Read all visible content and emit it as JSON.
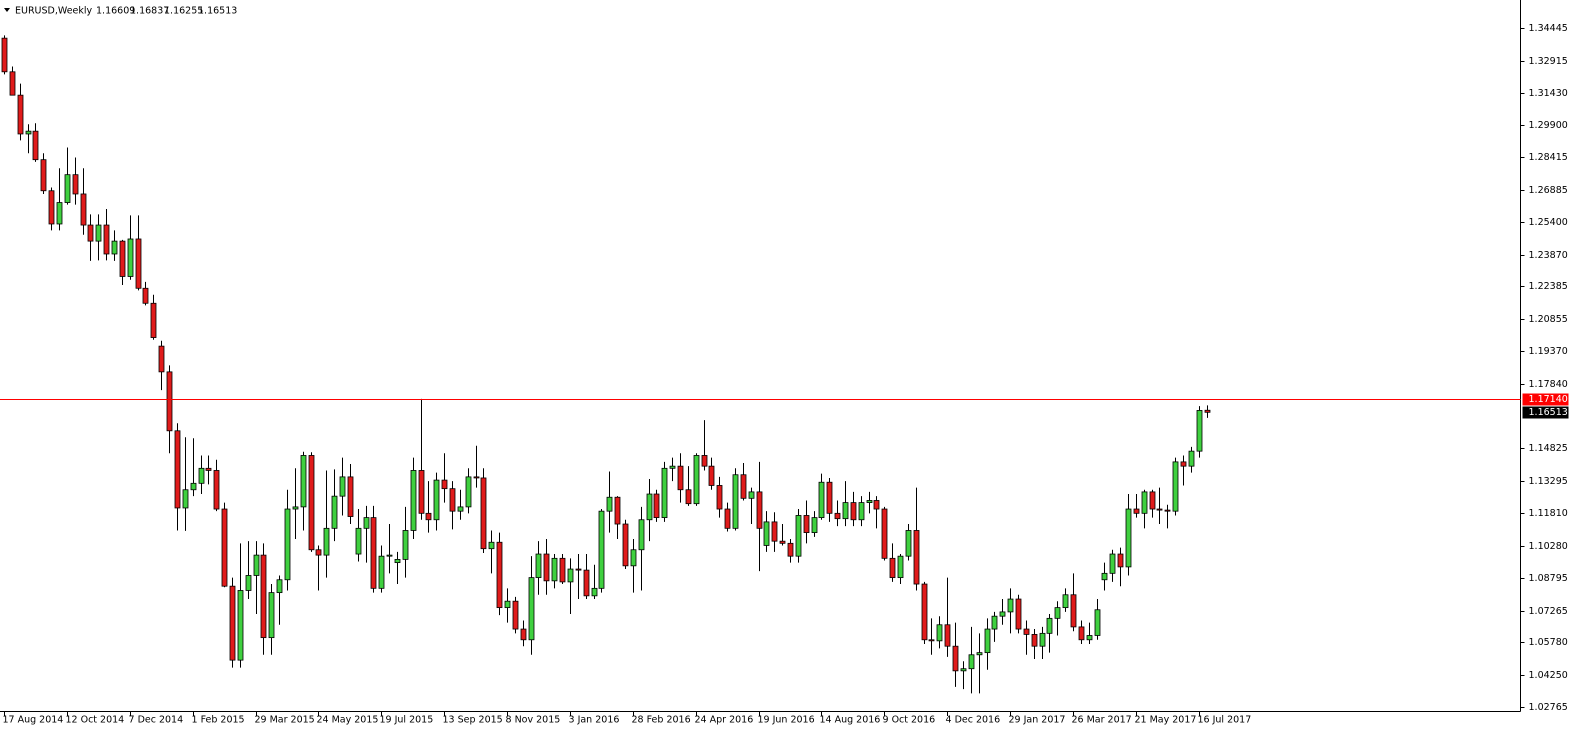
{
  "chart_data": {
    "type": "candlestick",
    "title": "EURUSD,Weekly",
    "categories": [
      "17 Aug 2014",
      null,
      null,
      null,
      null,
      null,
      null,
      null,
      "12 Oct 2014",
      null,
      null,
      null,
      null,
      null,
      null,
      null,
      "7 Dec 2014",
      null,
      null,
      null,
      null,
      null,
      null,
      null,
      "1 Feb 2015",
      null,
      null,
      null,
      null,
      null,
      null,
      null,
      "29 Mar 2015",
      null,
      null,
      null,
      null,
      null,
      null,
      null,
      "24 May 2015",
      null,
      null,
      null,
      null,
      null,
      null,
      null,
      "19 Jul 2015",
      null,
      null,
      null,
      null,
      null,
      null,
      null,
      "13 Sep 2015",
      null,
      null,
      null,
      null,
      null,
      null,
      null,
      "8 Nov 2015",
      null,
      null,
      null,
      null,
      null,
      null,
      null,
      "3 Jan 2016",
      null,
      null,
      null,
      null,
      null,
      null,
      null,
      "28 Feb 2016",
      null,
      null,
      null,
      null,
      null,
      null,
      null,
      "24 Apr 2016",
      null,
      null,
      null,
      null,
      null,
      null,
      null,
      "19 Jun 2016",
      null,
      null,
      null,
      null,
      null,
      null,
      null,
      "14 Aug 2016",
      null,
      null,
      null,
      null,
      null,
      null,
      null,
      "9 Oct 2016",
      null,
      null,
      null,
      null,
      null,
      null,
      null,
      "4 Dec 2016",
      null,
      null,
      null,
      null,
      null,
      null,
      null,
      "29 Jan 2017",
      null,
      null,
      null,
      null,
      null,
      null,
      null,
      "26 Mar 2017",
      null,
      null,
      null,
      null,
      null,
      null,
      null,
      "21 May 2017",
      null,
      null,
      null,
      null,
      null,
      null,
      null,
      "16 Jul 2017",
      null
    ],
    "open": [
      1.3397,
      1.324,
      1.3131,
      1.295,
      1.2963,
      1.283,
      1.2685,
      1.253,
      1.263,
      1.276,
      1.267,
      1.2525,
      1.245,
      1.2525,
      1.239,
      1.245,
      1.2285,
      1.246,
      1.223,
      1.216,
      1.196,
      1.184,
      1.1565,
      1.1205,
      1.129,
      1.132,
      1.139,
      1.138,
      1.12,
      1.084,
      1.0495,
      1.082,
      1.089,
      1.0985,
      1.06,
      1.081,
      1.087,
      1.12,
      1.121,
      1.145,
      1.101,
      1.0985,
      1.111,
      1.126,
      1.135,
      1.099,
      1.111,
      1.116,
      1.083,
      1.098,
      1.095,
      1.0965,
      1.11,
      1.138,
      1.118,
      1.115,
      1.1335,
      1.1295,
      1.119,
      1.121,
      1.135,
      1.1345,
      1.1015,
      1.1045,
      1.074,
      1.077,
      1.064,
      1.059,
      1.088,
      1.099,
      1.0865,
      1.097,
      1.086,
      1.092,
      1.0915,
      1.0795,
      1.083,
      1.119,
      1.1255,
      1.113,
      1.0935,
      1.101,
      1.115,
      1.127,
      1.116,
      1.139,
      1.14,
      1.129,
      1.1225,
      1.145,
      1.14,
      1.131,
      1.12,
      1.111,
      1.136,
      1.125,
      1.128,
      1.103,
      1.114,
      1.105,
      1.104,
      1.098,
      1.117,
      1.109,
      1.116,
      1.1325,
      1.118,
      1.1155,
      1.123,
      1.115,
      1.123,
      1.124,
      1.12,
      1.097,
      1.088,
      1.098,
      1.11,
      1.085,
      1.059,
      1.0585,
      1.066,
      1.056,
      1.0445,
      1.0455,
      1.052,
      1.053,
      1.064,
      1.07,
      1.072,
      1.078,
      1.064,
      1.0615,
      1.056,
      1.062,
      1.069,
      1.074,
      1.08,
      1.065,
      1.059,
      1.061,
      1.087,
      1.09,
      1.099,
      1.093,
      1.12,
      1.118,
      1.128,
      1.12,
      1.1195,
      1.119,
      1.142,
      1.14,
      1.147,
      1.16609
    ],
    "high": [
      1.341,
      1.3265,
      1.3185,
      1.2995,
      1.3,
      1.286,
      1.27,
      1.279,
      1.2887,
      1.284,
      1.279,
      1.2575,
      1.2575,
      1.26,
      1.25,
      1.2456,
      1.257,
      1.257,
      1.226,
      1.22,
      1.1985,
      1.187,
      1.16,
      1.1535,
      1.153,
      1.145,
      1.145,
      1.143,
      1.123,
      1.088,
      1.104,
      1.105,
      1.105,
      1.104,
      1.085,
      1.089,
      1.129,
      1.139,
      1.1467,
      1.1465,
      1.103,
      1.138,
      1.1385,
      1.144,
      1.141,
      1.12,
      1.1215,
      1.1215,
      1.103,
      1.113,
      1.1,
      1.121,
      1.144,
      1.1714,
      1.133,
      1.137,
      1.146,
      1.133,
      1.129,
      1.139,
      1.1495,
      1.139,
      1.11,
      1.109,
      1.083,
      1.079,
      1.068,
      1.098,
      1.105,
      1.106,
      1.099,
      1.099,
      1.097,
      1.099,
      1.099,
      1.094,
      1.12,
      1.1375,
      1.126,
      1.115,
      1.106,
      1.121,
      1.134,
      1.129,
      1.142,
      1.144,
      1.146,
      1.14,
      1.146,
      1.1615,
      1.144,
      1.135,
      1.123,
      1.139,
      1.1415,
      1.13,
      1.142,
      1.119,
      1.1185,
      1.113,
      1.106,
      1.12,
      1.124,
      1.119,
      1.1365,
      1.1345,
      1.124,
      1.133,
      1.128,
      1.126,
      1.128,
      1.126,
      1.121,
      1.104,
      1.099,
      1.113,
      1.13,
      1.086,
      1.069,
      1.07,
      1.088,
      1.067,
      1.049,
      1.065,
      1.062,
      1.069,
      1.072,
      1.078,
      1.083,
      1.08,
      1.068,
      1.064,
      1.065,
      1.071,
      1.077,
      1.083,
      1.09,
      1.068,
      1.067,
      1.078,
      1.095,
      1.101,
      1.102,
      1.127,
      1.127,
      1.129,
      1.129,
      1.13,
      1.122,
      1.144,
      1.145,
      1.149,
      1.168,
      1.16837
    ],
    "low": [
      1.3228,
      1.313,
      1.292,
      1.286,
      1.282,
      1.267,
      1.25,
      1.25,
      1.262,
      1.262,
      1.248,
      1.2358,
      1.236,
      1.236,
      1.2358,
      1.2245,
      1.227,
      1.222,
      1.215,
      1.199,
      1.1755,
      1.146,
      1.11,
      1.1098,
      1.126,
      1.127,
      1.1315,
      1.119,
      1.0835,
      1.046,
      1.046,
      1.078,
      1.071,
      1.052,
      1.052,
      1.066,
      1.082,
      1.106,
      1.11,
      1.1,
      1.082,
      1.088,
      1.105,
      1.117,
      1.113,
      1.0955,
      1.095,
      1.081,
      1.081,
      1.09,
      1.085,
      1.088,
      1.106,
      1.115,
      1.109,
      1.11,
      1.123,
      1.1105,
      1.115,
      1.118,
      1.13,
      1.0995,
      1.09,
      1.0705,
      1.067,
      1.062,
      1.056,
      1.052,
      1.08,
      1.08,
      1.083,
      1.085,
      1.071,
      1.078,
      1.078,
      1.078,
      1.081,
      1.109,
      1.106,
      1.092,
      1.081,
      1.082,
      1.105,
      1.114,
      1.114,
      1.133,
      1.123,
      1.1215,
      1.1215,
      1.138,
      1.129,
      1.116,
      1.1095,
      1.11,
      1.124,
      1.113,
      1.091,
      1.1,
      1.1,
      1.103,
      1.095,
      1.095,
      1.104,
      1.107,
      1.115,
      1.114,
      1.112,
      1.112,
      1.112,
      1.112,
      1.118,
      1.111,
      1.096,
      1.086,
      1.085,
      1.096,
      1.082,
      1.057,
      1.052,
      1.055,
      1.051,
      1.037,
      1.036,
      1.034,
      1.034,
      1.045,
      1.058,
      1.066,
      1.062,
      1.062,
      1.052,
      1.05,
      1.05,
      1.053,
      1.061,
      1.072,
      1.063,
      1.057,
      1.057,
      1.059,
      1.082,
      1.086,
      1.084,
      1.089,
      1.116,
      1.111,
      1.116,
      1.113,
      1.111,
      1.117,
      1.131,
      1.137,
      1.144,
      1.16255
    ],
    "close": [
      1.324,
      1.3131,
      1.295,
      1.2963,
      1.283,
      1.2685,
      1.253,
      1.263,
      1.276,
      1.267,
      1.2525,
      1.245,
      1.2525,
      1.239,
      1.245,
      1.2285,
      1.246,
      1.223,
      1.216,
      1.2,
      1.184,
      1.1565,
      1.1205,
      1.129,
      1.132,
      1.139,
      1.138,
      1.12,
      1.084,
      1.0495,
      1.082,
      1.089,
      1.0985,
      1.06,
      1.081,
      1.087,
      1.12,
      1.121,
      1.145,
      1.101,
      1.0985,
      1.111,
      1.126,
      1.135,
      1.1165,
      1.111,
      1.116,
      1.083,
      1.098,
      1.0985,
      1.0965,
      1.11,
      1.138,
      1.118,
      1.115,
      1.1335,
      1.1295,
      1.119,
      1.121,
      1.135,
      1.1345,
      1.1015,
      1.1045,
      1.074,
      1.077,
      1.064,
      1.059,
      1.088,
      1.099,
      1.0865,
      1.097,
      1.086,
      1.092,
      1.0915,
      1.0795,
      1.083,
      1.119,
      1.1255,
      1.113,
      1.0935,
      1.101,
      1.115,
      1.127,
      1.116,
      1.139,
      1.14,
      1.129,
      1.1225,
      1.145,
      1.14,
      1.131,
      1.12,
      1.111,
      1.136,
      1.125,
      1.128,
      1.111,
      1.114,
      1.105,
      1.104,
      1.098,
      1.117,
      1.109,
      1.116,
      1.1325,
      1.118,
      1.1155,
      1.123,
      1.115,
      1.123,
      1.124,
      1.12,
      1.097,
      1.088,
      1.098,
      1.11,
      1.085,
      1.059,
      1.0585,
      1.066,
      1.056,
      1.0445,
      1.0455,
      1.052,
      1.053,
      1.064,
      1.07,
      1.072,
      1.078,
      1.064,
      1.0615,
      1.056,
      1.062,
      1.069,
      1.074,
      1.08,
      1.065,
      1.059,
      1.061,
      1.073,
      1.09,
      1.099,
      1.093,
      1.12,
      1.118,
      1.128,
      1.12,
      1.1195,
      1.119,
      1.142,
      1.14,
      1.147,
      1.166,
      1.16513
    ],
    "up_color": "#3fd03f",
    "down_color": "#e01b1b",
    "ylim": [
      1.0253,
      1.3575
    ],
    "yticks": [
      1.34445,
      1.32915,
      {
        "value": 1.3143,
        "label": "1.31430"
      },
      {
        "value": 1.299,
        "label": "1.29900"
      },
      1.28415,
      1.26885,
      {
        "value": 1.254,
        "label": "1.25400"
      },
      {
        "value": 1.2387,
        "label": "1.23870"
      },
      1.22385,
      1.20855,
      {
        "value": 1.1937,
        "label": "1.19370"
      },
      {
        "value": 1.1784,
        "label": "1.17840"
      },
      1.14825,
      1.13295,
      {
        "value": 1.1181,
        "label": "1.11810"
      },
      {
        "value": 1.1028,
        "label": "1.10280"
      },
      1.08795,
      1.07265,
      {
        "value": 1.0578,
        "label": "1.05780"
      },
      {
        "value": 1.0425,
        "label": "1.04250"
      },
      1.02765
    ],
    "hline": {
      "value": 1.1714,
      "label": "1.17140",
      "color": "#ff0000"
    }
  }
}
